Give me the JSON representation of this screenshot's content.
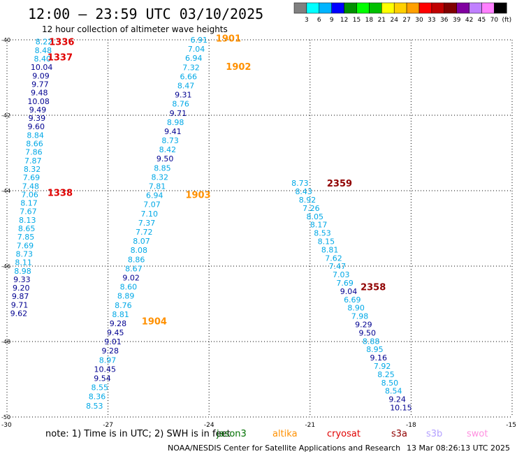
{
  "header": {
    "title": "12:00 – 23:59 UTC 03/10/2025",
    "subtitle": "12 hour collection of altimeter wave heights"
  },
  "legend_scale": {
    "unit": "(ft)",
    "colors": [
      "#808080",
      "#00ffff",
      "#00b4ff",
      "#0000ff",
      "#009000",
      "#00ff00",
      "#00c000",
      "#ffff00",
      "#ffd000",
      "#ffa000",
      "#ff0000",
      "#c00000",
      "#800000",
      "#8000a0",
      "#c080ff",
      "#ff80ff",
      "#000000"
    ],
    "labels": [
      "3",
      "6",
      "9",
      "12",
      "15",
      "18",
      "21",
      "24",
      "27",
      "30",
      "33",
      "36",
      "39",
      "42",
      "45",
      "70"
    ]
  },
  "footer": {
    "note": "note:  1) Time is in UTC;  2) SWH is in feet",
    "satellites": [
      {
        "name": "jason3",
        "color": "#007000"
      },
      {
        "name": "altika",
        "color": "#ff9000"
      },
      {
        "name": "cryosat",
        "color": "#e00000"
      },
      {
        "name": "s3a",
        "color": "#900000"
      },
      {
        "name": "s3b",
        "color": "#b4a0ff"
      },
      {
        "name": "swot",
        "color": "#ff90e0"
      }
    ],
    "credit": "NOAA/NESDIS Center for Satellite Applications and Research",
    "timestamp": "13 Mar 08:26:13 UTC 2025"
  },
  "chart_data": {
    "type": "scatter",
    "xlabel": "",
    "ylabel": "",
    "xlim": [
      -30,
      -15
    ],
    "ylim": [
      -50,
      -40
    ],
    "x_ticks": [
      -30,
      -27,
      -24,
      -21,
      -18,
      -15
    ],
    "y_ticks": [
      -40,
      -42,
      -44,
      -46,
      -48,
      -50
    ],
    "grid": true,
    "tracks": [
      {
        "satellite": "cryosat",
        "start": [
          -28.9,
          -40.05
        ],
        "end": [
          -29.65,
          -47.25
        ],
        "values": [
          "8.22",
          "8.48",
          "8.40",
          "10.04",
          "9.09",
          "9.77",
          "9.48",
          "10.08",
          "9.49",
          "9.39",
          "9.60",
          "8.84",
          "8.66",
          "7.86",
          "7.87",
          "8.32",
          "7.69",
          "7.48",
          "7.06",
          "8.17",
          "7.67",
          "8.13",
          "8.65",
          "7.85",
          "7.69",
          "8.73",
          "8.11",
          "8.98",
          "9.33",
          "9.20",
          "9.87",
          "9.71",
          "9.62"
        ],
        "time_labels": [
          {
            "text": "1336",
            "x": -28.75,
            "y": -40.05
          },
          {
            "text": "1337",
            "x": -28.8,
            "y": -40.45
          },
          {
            "text": "1338",
            "x": -28.8,
            "y": -44.05
          }
        ]
      },
      {
        "satellite": "altika",
        "start": [
          -24.3,
          -40.0
        ],
        "end": [
          -27.4,
          -49.7
        ],
        "values": [
          "6.91",
          "7.04",
          "6.94",
          "7.32",
          "6.66",
          "8.47",
          "9.31",
          "8.76",
          "9.71",
          "8.98",
          "9.41",
          "8.73",
          "8.42",
          "9.50",
          "8.85",
          "8.32",
          "7.81",
          "6.94",
          "7.07",
          "7.10",
          "7.37",
          "7.72",
          "8.07",
          "8.08",
          "8.86",
          "8.67",
          "9.02",
          "8.60",
          "8.89",
          "8.76",
          "8.81",
          "9.28",
          "9.45",
          "9.01",
          "9.28",
          "8.97",
          "10.45",
          "9.54",
          "8.55",
          "8.36",
          "8.53"
        ],
        "time_labels": [
          {
            "text": "1901",
            "x": -23.8,
            "y": -39.95
          },
          {
            "text": "1902",
            "x": -23.5,
            "y": -40.7
          },
          {
            "text": "1903",
            "x": -24.7,
            "y": -44.1
          },
          {
            "text": "1904",
            "x": -26.0,
            "y": -47.45
          }
        ]
      },
      {
        "satellite": "s3a",
        "start": [
          -21.3,
          -43.8
        ],
        "end": [
          -18.3,
          -49.75
        ],
        "values": [
          "8.73",
          "8.43",
          "8.92",
          "7.26",
          "8.05",
          "8.17",
          "8.53",
          "8.15",
          "8.81",
          "7.62",
          "7.47",
          "7.03",
          "7.69",
          "9.04",
          "6.69",
          "8.90",
          "7.98",
          "9.29",
          "9.50",
          "8.88",
          "8.95",
          "9.16",
          "7.92",
          "8.25",
          "8.50",
          "8.54",
          "9.24",
          "10.15"
        ],
        "time_labels": [
          {
            "text": "2359",
            "x": -20.5,
            "y": -43.8
          },
          {
            "text": "2358",
            "x": -19.5,
            "y": -46.55
          }
        ]
      }
    ]
  }
}
